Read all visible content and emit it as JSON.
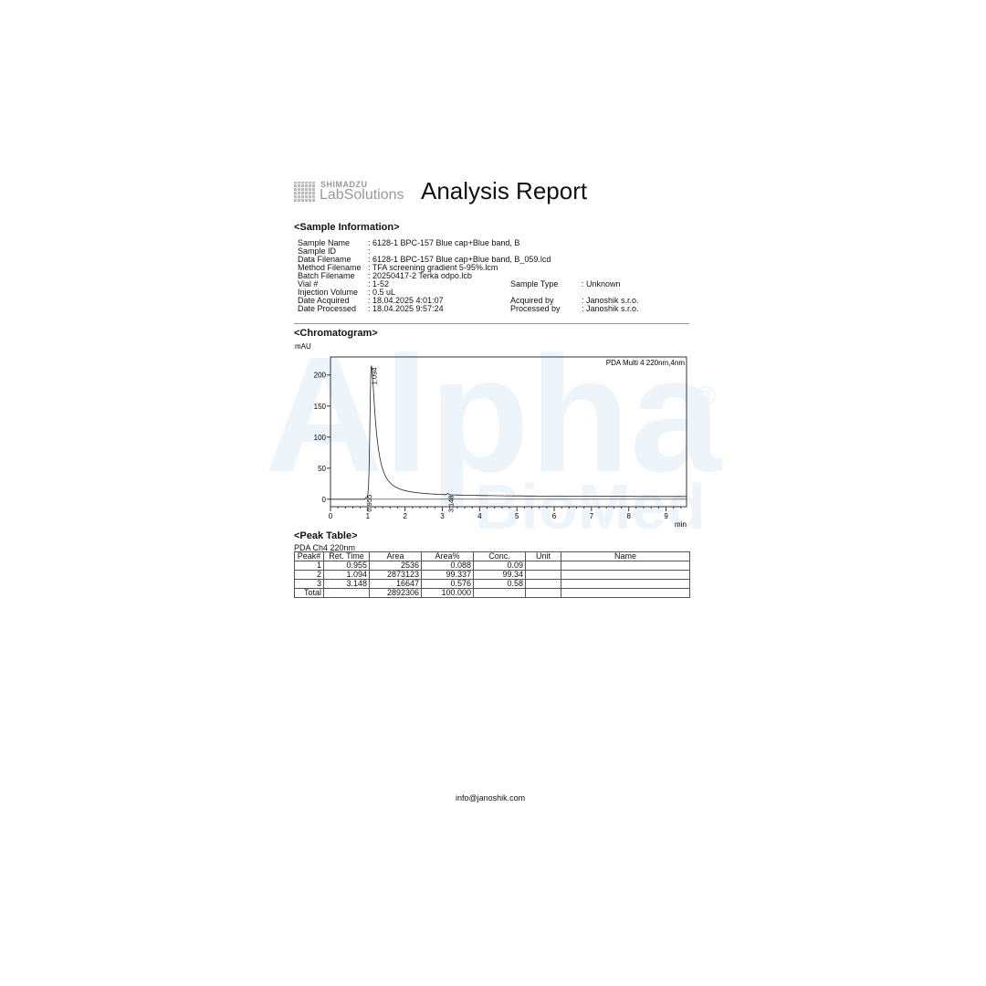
{
  "header": {
    "brand_top": "SHIMADZU",
    "brand_bottom": "LabSolutions",
    "title": "Analysis Report"
  },
  "watermark": {
    "line1": "Alpha",
    "reg": "®",
    "line2": "BioMed",
    "color": "#e8f2f8"
  },
  "sample_info": {
    "heading": "<Sample Information>",
    "left": [
      {
        "label": "Sample Name",
        "value": ": 6128-1 BPC-157 Blue cap+Blue band, B"
      },
      {
        "label": "Sample ID",
        "value": ":"
      },
      {
        "label": "Data Filename",
        "value": ": 6128-1 BPC-157 Blue cap+Blue band, B_059.lcd"
      },
      {
        "label": "Method Filename",
        "value": ": TFA screening gradient 5-95%.lcm"
      },
      {
        "label": "Batch Filename",
        "value": ": 20250417-2 Terka odpo.lcb"
      },
      {
        "label": "Vial #",
        "value": ": 1-52"
      },
      {
        "label": "Injection Volume",
        "value": ": 0.5 uL"
      },
      {
        "label": "Date Acquired",
        "value": ": 18.04.2025 4:01:07"
      },
      {
        "label": "Date Processed",
        "value": ": 18.04.2025 9:57:24"
      }
    ],
    "right": [
      {
        "label": "Sample Type",
        "value": ": Unknown"
      },
      {
        "label": "Acquired by",
        "value": ": Janoshik s.r.o."
      },
      {
        "label": "Processed by",
        "value": ": Janoshik s.r.o."
      }
    ]
  },
  "chart_data": {
    "type": "line",
    "heading": "<Chromatogram>",
    "ylabel": "mAU",
    "xlabel": "min",
    "legend": "PDA Multi 4 220nm,4nm",
    "legend_position": "top-right",
    "xlim": [
      0,
      9.55
    ],
    "ylim": [
      -12,
      229
    ],
    "xticks": [
      0,
      1,
      2,
      3,
      4,
      5,
      6,
      7,
      8,
      9
    ],
    "yticks": [
      0,
      50,
      100,
      150,
      200
    ],
    "peaks": [
      {
        "label": "0.955",
        "rt": 0.955,
        "height": 3
      },
      {
        "label": "1.094",
        "rt": 1.094,
        "height": 215
      },
      {
        "label": "3.148",
        "rt": 3.148,
        "height": 2
      }
    ]
  },
  "peak_table": {
    "heading": "<Peak Table>",
    "channel": "PDA Ch4 220nm",
    "columns": [
      "Peak#",
      "Ret. Time",
      "Area",
      "Area%",
      "Conc.",
      "Unit",
      "Name"
    ],
    "rows": [
      [
        "1",
        "0.955",
        "2536",
        "0.088",
        "0.09",
        "",
        ""
      ],
      [
        "2",
        "1.094",
        "2873123",
        "99.337",
        "99.34",
        "",
        ""
      ],
      [
        "3",
        "3.148",
        "16647",
        "0.576",
        "0.58",
        "",
        ""
      ],
      [
        "Total",
        "",
        "2892306",
        "100.000",
        "",
        "",
        ""
      ]
    ]
  },
  "footer": {
    "email": "info@janoshik.com"
  }
}
